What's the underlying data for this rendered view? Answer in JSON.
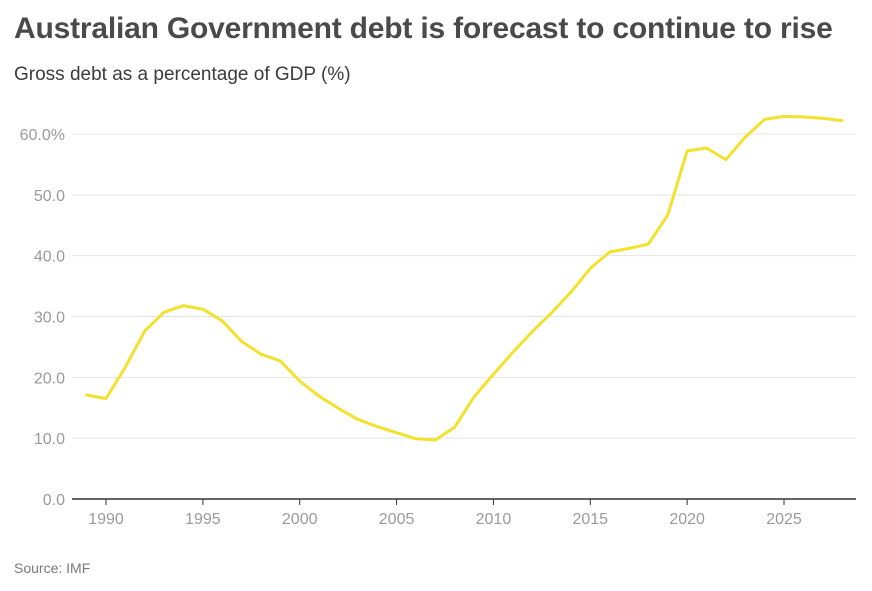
{
  "header": {
    "title": "Australian Government debt is forecast to continue to rise",
    "subtitle": "Gross debt as a percentage of GDP (%)"
  },
  "footer": {
    "source": "Source: IMF"
  },
  "colors": {
    "line": "#f2e22e",
    "grid": "#e4e4e4",
    "axis": "#333333",
    "tick_text": "#9a9a9a",
    "title": "#4a4a4a"
  },
  "chart_data": {
    "type": "line",
    "title": "Australian Government debt is forecast to continue to rise",
    "subtitle": "Gross debt as a percentage of GDP (%)",
    "xlabel": "",
    "ylabel": "",
    "xlim": [
      1989,
      2028.5
    ],
    "ylim": [
      0,
      60
    ],
    "grid": true,
    "legend": "none",
    "x_ticks": [
      "1990",
      "1995",
      "2000",
      "2005",
      "2010",
      "2015",
      "2020",
      "2025"
    ],
    "y_ticks": [
      "0.0",
      "10.0",
      "20.0",
      "30.0",
      "40.0",
      "50.0",
      "60.0%"
    ],
    "series": [
      {
        "x": [
          1989,
          1990,
          1991,
          1992,
          1993,
          1994,
          1995,
          1996,
          1997,
          1998,
          1999,
          2000,
          2001,
          2002,
          2003,
          2004,
          2005,
          2006,
          2007,
          2008,
          2009,
          2010,
          2011,
          2012,
          2013,
          2014,
          2015,
          2016,
          2017,
          2018,
          2019,
          2020,
          2021,
          2022,
          2023,
          2024,
          2025,
          2026,
          2027,
          2028
        ],
        "values": [
          17.1,
          16.5,
          21.7,
          27.6,
          30.7,
          31.8,
          31.2,
          29.3,
          25.9,
          23.8,
          22.7,
          19.4,
          16.9,
          14.9,
          13.1,
          11.9,
          10.9,
          9.9,
          9.7,
          11.8,
          16.8,
          20.5,
          24.1,
          27.5,
          30.6,
          34.0,
          37.9,
          40.6,
          41.2,
          41.9,
          46.7,
          57.2,
          57.7,
          55.8,
          59.5,
          62.4,
          62.9,
          62.8,
          62.6,
          62.2
        ]
      }
    ]
  }
}
